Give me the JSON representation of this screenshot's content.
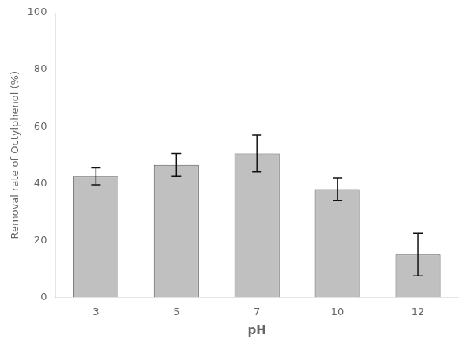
{
  "chart_data": {
    "type": "bar",
    "categories": [
      "3",
      "5",
      "7",
      "10",
      "12"
    ],
    "values": [
      42.5,
      46.5,
      50.5,
      38.0,
      15.0
    ],
    "errors": [
      3.0,
      4.0,
      6.5,
      4.0,
      7.5
    ],
    "color": "#c0c0c0",
    "xlabel": "pH",
    "ylabel": "Removal rate of Octylphenol (%)",
    "ylim": [
      0,
      100
    ],
    "yticks": [
      0,
      20,
      40,
      60,
      80,
      100
    ],
    "grid": false
  }
}
